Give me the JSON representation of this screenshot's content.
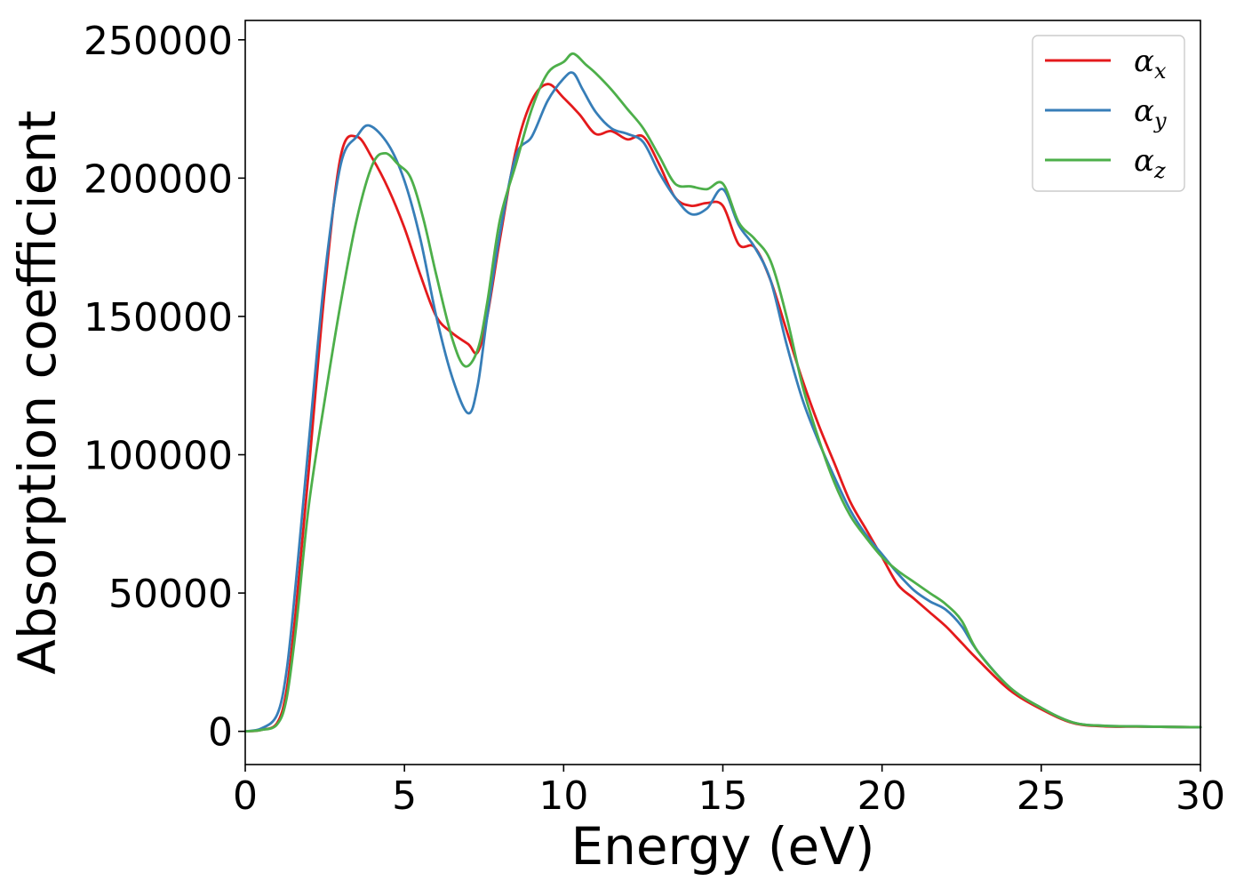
{
  "chart_data": {
    "type": "line",
    "title": "",
    "xlabel": "Energy (eV)",
    "ylabel": "Absorption coefficient",
    "xlim": [
      0,
      30
    ],
    "ylim": [
      -12000,
      257000
    ],
    "xticks": [
      0,
      5,
      10,
      15,
      20,
      25,
      30
    ],
    "yticks": [
      0,
      50000,
      100000,
      150000,
      200000,
      250000
    ],
    "grid": false,
    "legend_position": "top-right",
    "series": [
      {
        "name": "α",
        "subscript": "x",
        "color": "#e41a1c",
        "x": [
          0,
          0.5,
          1.0,
          1.3,
          1.6,
          2.0,
          2.5,
          3.0,
          3.5,
          4.0,
          4.5,
          5.0,
          5.5,
          6.0,
          6.5,
          7.0,
          7.3,
          7.6,
          8.0,
          8.5,
          9.0,
          9.5,
          10.0,
          10.5,
          11.0,
          11.5,
          12.0,
          12.5,
          13.0,
          13.5,
          14.0,
          14.5,
          15.0,
          15.5,
          16.0,
          16.5,
          17.0,
          17.5,
          18.0,
          18.5,
          19.0,
          19.5,
          20.0,
          20.5,
          21.0,
          21.5,
          22.0,
          22.5,
          23.0,
          24.0,
          25.0,
          26.0,
          27.0,
          28.0,
          29.0,
          30.0
        ],
        "y": [
          0,
          500,
          3000,
          15000,
          45000,
          95000,
          160000,
          208000,
          215000,
          207000,
          196000,
          182000,
          165000,
          150000,
          144000,
          140000,
          137000,
          150000,
          178000,
          210000,
          228000,
          234000,
          229000,
          223000,
          216000,
          217000,
          214000,
          215000,
          205000,
          193000,
          190000,
          191000,
          190000,
          176000,
          175000,
          163000,
          145000,
          127000,
          111000,
          97000,
          83000,
          73000,
          63000,
          53000,
          48000,
          43000,
          38000,
          32000,
          26000,
          15000,
          8000,
          3000,
          1800,
          1700,
          1600,
          1500
        ]
      },
      {
        "name": "α",
        "subscript": "y",
        "color": "#377eb8",
        "x": [
          0,
          0.5,
          1.0,
          1.3,
          1.6,
          2.0,
          2.5,
          3.0,
          3.5,
          3.9,
          4.5,
          5.0,
          5.5,
          6.0,
          6.5,
          7.0,
          7.3,
          7.6,
          8.0,
          8.5,
          9.0,
          9.5,
          10.0,
          10.3,
          10.6,
          11.0,
          11.5,
          12.0,
          12.5,
          13.0,
          13.5,
          14.0,
          14.5,
          15.0,
          15.5,
          16.0,
          16.5,
          17.0,
          17.5,
          18.0,
          18.5,
          19.0,
          19.5,
          20.0,
          20.5,
          21.0,
          21.5,
          22.0,
          22.5,
          23.0,
          24.0,
          25.0,
          26.0,
          27.0,
          28.0,
          29.0,
          30.0
        ],
        "y": [
          0,
          1000,
          6000,
          22000,
          55000,
          105000,
          165000,
          205000,
          215000,
          219000,
          212000,
          199000,
          178000,
          150000,
          128000,
          115000,
          125000,
          150000,
          180000,
          208000,
          215000,
          228000,
          236000,
          238000,
          232000,
          224000,
          218000,
          216000,
          213000,
          202000,
          193000,
          187000,
          189000,
          196000,
          183000,
          175000,
          163000,
          140000,
          120000,
          105000,
          92000,
          80000,
          71000,
          64000,
          57000,
          51000,
          47000,
          44000,
          38000,
          29000,
          16000,
          8500,
          3200,
          2000,
          1800,
          1600,
          1500
        ]
      },
      {
        "name": "α",
        "subscript": "z",
        "color": "#4daf4a",
        "x": [
          0,
          0.5,
          1.0,
          1.3,
          1.6,
          2.0,
          2.5,
          3.0,
          3.5,
          4.0,
          4.4,
          4.8,
          5.2,
          5.6,
          6.0,
          6.5,
          6.9,
          7.3,
          7.6,
          8.0,
          8.5,
          9.0,
          9.5,
          10.0,
          10.3,
          10.7,
          11.0,
          11.5,
          12.0,
          12.5,
          13.0,
          13.5,
          14.0,
          14.5,
          15.0,
          15.5,
          16.0,
          16.5,
          17.0,
          17.5,
          18.0,
          18.5,
          19.0,
          19.5,
          20.0,
          20.5,
          21.0,
          21.5,
          22.0,
          22.5,
          23.0,
          24.0,
          25.0,
          26.0,
          27.0,
          28.0,
          29.0,
          30.0
        ],
        "y": [
          0,
          500,
          2500,
          12000,
          38000,
          82000,
          120000,
          155000,
          185000,
          205000,
          209000,
          205000,
          200000,
          185000,
          165000,
          142000,
          132000,
          138000,
          155000,
          185000,
          205000,
          225000,
          238000,
          242000,
          245000,
          241000,
          238000,
          232000,
          225000,
          218000,
          208000,
          198000,
          197000,
          196000,
          198000,
          184000,
          178000,
          170000,
          150000,
          125000,
          106000,
          90000,
          78000,
          70000,
          63000,
          58000,
          54000,
          50000,
          46000,
          40000,
          29000,
          16000,
          8500,
          3200,
          2000,
          1800,
          1600,
          1500
        ]
      }
    ]
  }
}
